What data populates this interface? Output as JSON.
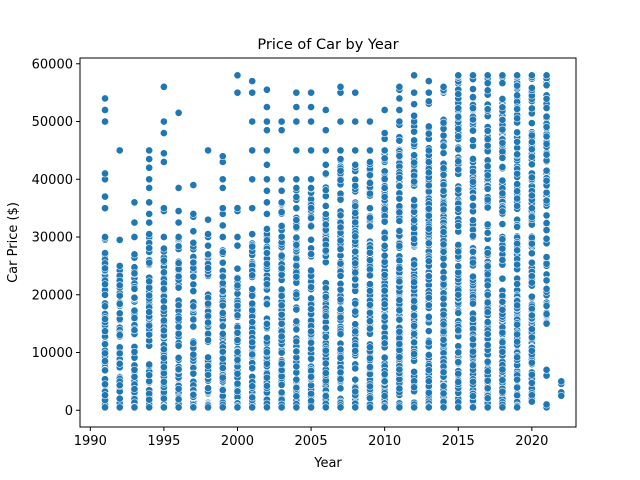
{
  "chart_data": {
    "type": "scatter",
    "title": "Price of Car by Year",
    "xlabel": "Year",
    "ylabel": "Car Price ($)",
    "xlim": [
      1989.3,
      2023.0
    ],
    "ylim": [
      -2900,
      61000
    ],
    "xticks": [
      1990,
      1995,
      2000,
      2005,
      2010,
      2015,
      2020
    ],
    "yticks": [
      0,
      10000,
      20000,
      30000,
      40000,
      50000,
      60000
    ],
    "xtick_labels": [
      "1990",
      "1995",
      "2000",
      "2005",
      "2010",
      "2015",
      "2020"
    ],
    "ytick_labels": [
      "0",
      "10000",
      "20000",
      "30000",
      "40000",
      "50000",
      "60000"
    ],
    "grid": false,
    "marker_color": "#1f77b4",
    "series": [
      {
        "points_by_year": [
          {
            "x": 1991,
            "y_band": [
              500,
              30000
            ],
            "outliers": [
              35000,
              37000,
              40000,
              41000,
              50000,
              52000,
              54000
            ]
          },
          {
            "x": 1992,
            "y_band": [
              500,
              25000
            ],
            "outliers": [
              29500,
              45000
            ]
          },
          {
            "x": 1993,
            "y_band": [
              500,
              27000
            ],
            "outliers": [
              30000,
              32500,
              36000
            ]
          },
          {
            "x": 1994,
            "y_band": [
              500,
              30500
            ],
            "outliers": [
              32500,
              34000,
              36000,
              38500,
              40000,
              42000,
              43500,
              45000
            ]
          },
          {
            "x": 1995,
            "y_band": [
              500,
              28000
            ],
            "outliers": [
              30000,
              34500,
              35000,
              43000,
              44500,
              48000,
              50000,
              56000
            ]
          },
          {
            "x": 1996,
            "y_band": [
              500,
              30000
            ],
            "outliers": [
              32500,
              34500,
              38500,
              51500
            ]
          },
          {
            "x": 1997,
            "y_band": [
              500,
              29000
            ],
            "outliers": [
              31000,
              33500,
              34000,
              39000
            ]
          },
          {
            "x": 1998,
            "y_band": [
              500,
              27000
            ],
            "outliers": [
              28500,
              30000,
              30500,
              33000,
              45000
            ]
          },
          {
            "x": 1999,
            "y_band": [
              500,
              30000
            ],
            "outliers": [
              32000,
              34000,
              35000,
              38500,
              40000,
              43000,
              44000
            ]
          },
          {
            "x": 2000,
            "y_band": [
              500,
              30000
            ],
            "outliers": [
              34500,
              35000,
              55000,
              58000
            ]
          },
          {
            "x": 2001,
            "y_band": [
              500,
              30500
            ],
            "outliers": [
              35000,
              40000,
              45000,
              50000,
              55000,
              57000
            ]
          },
          {
            "x": 2002,
            "y_band": [
              500,
              34000
            ],
            "outliers": [
              36000,
              38000,
              40000,
              42500,
              45000,
              48500,
              50000,
              52500,
              55500
            ]
          },
          {
            "x": 2003,
            "y_band": [
              500,
              36000
            ],
            "outliers": [
              38000,
              40000,
              48500,
              50000
            ]
          },
          {
            "x": 2004,
            "y_band": [
              500,
              38500
            ],
            "outliers": [
              40000,
              45000,
              50000,
              52500,
              55000
            ]
          },
          {
            "x": 2005,
            "y_band": [
              500,
              38500
            ],
            "outliers": [
              40000,
              45000,
              50000,
              52500,
              55000
            ]
          },
          {
            "x": 2006,
            "y_band": [
              500,
              41000
            ],
            "outliers": [
              42500,
              45000,
              48500,
              52000
            ]
          },
          {
            "x": 2007,
            "y_band": [
              500,
              43500
            ],
            "outliers": [
              45000,
              50000,
              55000,
              56000
            ]
          },
          {
            "x": 2008,
            "y_band": [
              500,
              42500
            ],
            "outliers": [
              45000,
              50000,
              55000
            ]
          },
          {
            "x": 2009,
            "y_band": [
              500,
              43000
            ],
            "outliers": [
              45000,
              50000
            ]
          },
          {
            "x": 2010,
            "y_band": [
              500,
              45000
            ],
            "outliers": [
              47000,
              48000,
              52000
            ]
          },
          {
            "x": 2011,
            "y_band": [
              500,
              50000
            ],
            "outliers": [
              52000,
              54000,
              55500,
              56000
            ]
          },
          {
            "x": 2012,
            "y_band": [
              500,
              50000
            ],
            "outliers": [
              51000,
              53000,
              55000,
              58000
            ]
          },
          {
            "x": 2013,
            "y_band": [
              500,
              53500
            ],
            "outliers": [
              55000,
              57000
            ]
          },
          {
            "x": 2014,
            "y_band": [
              500,
              56000
            ],
            "outliers": []
          },
          {
            "x": 2015,
            "y_band": [
              500,
              58000
            ],
            "outliers": []
          },
          {
            "x": 2016,
            "y_band": [
              500,
              58000
            ],
            "outliers": []
          },
          {
            "x": 2017,
            "y_band": [
              500,
              58000
            ],
            "outliers": []
          },
          {
            "x": 2018,
            "y_band": [
              500,
              58000
            ],
            "outliers": []
          },
          {
            "x": 2019,
            "y_band": [
              500,
              58000
            ],
            "outliers": []
          },
          {
            "x": 2020,
            "y_band": [
              1500,
              58000
            ],
            "outliers": []
          },
          {
            "x": 2021,
            "y_band": [
              15000,
              58000
            ],
            "outliers": [
              500,
              1000,
              6000,
              7000
            ]
          },
          {
            "x": 2022,
            "y_band": [
              2500,
              5000
            ],
            "outliers": []
          }
        ]
      }
    ]
  }
}
